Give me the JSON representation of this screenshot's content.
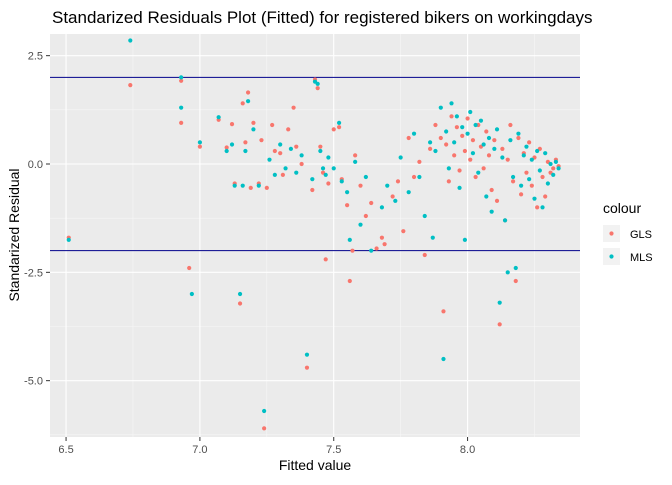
{
  "chart_data": {
    "type": "scatter",
    "title": "Standarized Residuals Plot (Fitted) for registered bikers on workingdays",
    "xlabel": "Fitted value",
    "ylabel": "Standarized Residual",
    "xlim": [
      6.44,
      8.42
    ],
    "ylim": [
      -6.3,
      3.0
    ],
    "x_ticks": [
      6.5,
      7.0,
      7.5,
      8.0
    ],
    "x_tick_labels": [
      "6.5",
      "7.0",
      "7.5",
      "8.0"
    ],
    "y_ticks": [
      2.5,
      0.0,
      -2.5,
      -5.0
    ],
    "y_tick_labels": [
      "2.5",
      "0.0",
      "-2.5",
      "-5.0"
    ],
    "hlines": [
      2.0,
      -2.0
    ],
    "hline_color": "#00008B",
    "grid": true,
    "panel_background": "#EBEBEB",
    "legend": {
      "title": "colour",
      "placement": "right"
    },
    "series": [
      {
        "name": "GLS",
        "color": "#F8766D",
        "points": [
          [
            6.51,
            -1.7
          ],
          [
            6.74,
            1.82
          ],
          [
            6.93,
            0.95
          ],
          [
            6.93,
            1.92
          ],
          [
            6.96,
            -2.4
          ],
          [
            7.0,
            0.4
          ],
          [
            7.07,
            1.02
          ],
          [
            7.1,
            0.38
          ],
          [
            7.12,
            0.92
          ],
          [
            7.13,
            -0.45
          ],
          [
            7.15,
            -3.22
          ],
          [
            7.16,
            1.4
          ],
          [
            7.17,
            0.5
          ],
          [
            7.18,
            1.65
          ],
          [
            7.19,
            -0.55
          ],
          [
            7.2,
            0.95
          ],
          [
            7.22,
            -0.45
          ],
          [
            7.23,
            0.55
          ],
          [
            7.24,
            -6.1
          ],
          [
            7.25,
            -0.55
          ],
          [
            7.27,
            0.9
          ],
          [
            7.28,
            0.3
          ],
          [
            7.3,
            0.25
          ],
          [
            7.31,
            -0.25
          ],
          [
            7.33,
            0.8
          ],
          [
            7.35,
            1.3
          ],
          [
            7.36,
            0.4
          ],
          [
            7.38,
            0.0
          ],
          [
            7.4,
            -4.7
          ],
          [
            7.42,
            -0.6
          ],
          [
            7.43,
            1.95
          ],
          [
            7.44,
            1.75
          ],
          [
            7.45,
            0.4
          ],
          [
            7.46,
            -0.2
          ],
          [
            7.47,
            -2.2
          ],
          [
            7.48,
            -0.45
          ],
          [
            7.5,
            0.8
          ],
          [
            7.52,
            0.85
          ],
          [
            7.53,
            -0.35
          ],
          [
            7.55,
            -0.95
          ],
          [
            7.56,
            -2.7
          ],
          [
            7.57,
            -2.0
          ],
          [
            7.58,
            0.2
          ],
          [
            7.6,
            -0.5
          ],
          [
            7.62,
            -1.2
          ],
          [
            7.64,
            -0.9
          ],
          [
            7.66,
            -1.95
          ],
          [
            7.68,
            -1.7
          ],
          [
            7.69,
            -1.85
          ],
          [
            7.72,
            -0.75
          ],
          [
            7.74,
            -0.4
          ],
          [
            7.76,
            -1.55
          ],
          [
            7.78,
            0.6
          ],
          [
            7.8,
            -0.3
          ],
          [
            7.82,
            0.05
          ],
          [
            7.84,
            -2.1
          ],
          [
            7.86,
            0.35
          ],
          [
            7.88,
            0.9
          ],
          [
            7.9,
            0.6
          ],
          [
            7.91,
            -3.4
          ],
          [
            7.92,
            0.45
          ],
          [
            7.93,
            -0.4
          ],
          [
            7.94,
            1.1
          ],
          [
            7.95,
            0.2
          ],
          [
            7.96,
            0.85
          ],
          [
            7.97,
            -0.15
          ],
          [
            7.98,
            0.65
          ],
          [
            7.99,
            0.3
          ],
          [
            8.0,
            1.05
          ],
          [
            8.01,
            0.1
          ],
          [
            8.02,
            0.55
          ],
          [
            8.03,
            -0.3
          ],
          [
            8.04,
            0.9
          ],
          [
            8.05,
            0.4
          ],
          [
            8.06,
            -0.1
          ],
          [
            8.07,
            0.75
          ],
          [
            8.08,
            0.2
          ],
          [
            8.09,
            -0.6
          ],
          [
            8.1,
            0.55
          ],
          [
            8.11,
            -0.85
          ],
          [
            8.12,
            -3.7
          ],
          [
            8.13,
            0.35
          ],
          [
            8.14,
            -1.3
          ],
          [
            8.15,
            0.1
          ],
          [
            8.16,
            0.9
          ],
          [
            8.17,
            -0.4
          ],
          [
            8.18,
            -2.7
          ],
          [
            8.19,
            0.6
          ],
          [
            8.2,
            -0.7
          ],
          [
            8.21,
            0.25
          ],
          [
            8.22,
            -0.2
          ],
          [
            8.23,
            0.5
          ],
          [
            8.24,
            -0.5
          ],
          [
            8.25,
            0.15
          ],
          [
            8.26,
            -1.0
          ],
          [
            8.27,
            0.35
          ],
          [
            8.28,
            -0.3
          ],
          [
            8.29,
            -0.75
          ],
          [
            8.3,
            0.05
          ],
          [
            8.31,
            -0.2
          ],
          [
            8.32,
            -0.1
          ],
          [
            8.33,
            0.1
          ],
          [
            8.34,
            -0.05
          ]
        ]
      },
      {
        "name": "MLS",
        "color": "#00BFC4",
        "points": [
          [
            6.51,
            -1.75
          ],
          [
            6.74,
            2.85
          ],
          [
            6.93,
            1.3
          ],
          [
            6.93,
            2.0
          ],
          [
            6.97,
            -3.0
          ],
          [
            7.0,
            0.5
          ],
          [
            7.07,
            1.08
          ],
          [
            7.1,
            0.3
          ],
          [
            7.12,
            0.45
          ],
          [
            7.13,
            -0.5
          ],
          [
            7.15,
            -3.0
          ],
          [
            7.16,
            -0.5
          ],
          [
            7.17,
            0.3
          ],
          [
            7.18,
            1.45
          ],
          [
            7.2,
            0.8
          ],
          [
            7.22,
            -0.5
          ],
          [
            7.24,
            -5.7
          ],
          [
            7.26,
            0.1
          ],
          [
            7.28,
            -0.25
          ],
          [
            7.3,
            0.45
          ],
          [
            7.32,
            -0.1
          ],
          [
            7.34,
            0.35
          ],
          [
            7.36,
            -0.2
          ],
          [
            7.38,
            0.2
          ],
          [
            7.4,
            -4.4
          ],
          [
            7.42,
            -0.35
          ],
          [
            7.43,
            1.9
          ],
          [
            7.44,
            1.85
          ],
          [
            7.45,
            0.3
          ],
          [
            7.46,
            -0.1
          ],
          [
            7.47,
            -0.25
          ],
          [
            7.48,
            0.15
          ],
          [
            7.5,
            -0.1
          ],
          [
            7.52,
            0.95
          ],
          [
            7.53,
            -0.4
          ],
          [
            7.55,
            -0.65
          ],
          [
            7.56,
            -1.75
          ],
          [
            7.58,
            0.05
          ],
          [
            7.6,
            -1.4
          ],
          [
            7.62,
            -0.3
          ],
          [
            7.64,
            -2.0
          ],
          [
            7.68,
            -1.0
          ],
          [
            7.7,
            -0.5
          ],
          [
            7.73,
            -0.85
          ],
          [
            7.75,
            0.15
          ],
          [
            7.78,
            -0.65
          ],
          [
            7.8,
            0.7
          ],
          [
            7.82,
            -0.3
          ],
          [
            7.84,
            -1.2
          ],
          [
            7.86,
            0.5
          ],
          [
            7.87,
            -1.7
          ],
          [
            7.88,
            0.3
          ],
          [
            7.9,
            1.3
          ],
          [
            7.91,
            -4.5
          ],
          [
            7.92,
            0.75
          ],
          [
            7.93,
            -0.1
          ],
          [
            7.94,
            1.4
          ],
          [
            7.95,
            0.5
          ],
          [
            7.96,
            1.1
          ],
          [
            7.97,
            -0.55
          ],
          [
            7.98,
            0.85
          ],
          [
            7.99,
            -1.75
          ],
          [
            8.0,
            0.7
          ],
          [
            8.01,
            1.2
          ],
          [
            8.02,
            0.25
          ],
          [
            8.03,
            0.9
          ],
          [
            8.04,
            -0.2
          ],
          [
            8.05,
            1.0
          ],
          [
            8.06,
            0.45
          ],
          [
            8.07,
            -0.75
          ],
          [
            8.08,
            0.6
          ],
          [
            8.09,
            -1.1
          ],
          [
            8.1,
            0.35
          ],
          [
            8.11,
            0.8
          ],
          [
            8.12,
            -3.2
          ],
          [
            8.13,
            0.15
          ],
          [
            8.14,
            -1.3
          ],
          [
            8.15,
            -2.5
          ],
          [
            8.16,
            0.55
          ],
          [
            8.17,
            -0.3
          ],
          [
            8.18,
            -2.4
          ],
          [
            8.19,
            0.7
          ],
          [
            8.2,
            -0.5
          ],
          [
            8.21,
            0.2
          ],
          [
            8.22,
            0.4
          ],
          [
            8.23,
            -0.35
          ],
          [
            8.24,
            0.1
          ],
          [
            8.25,
            -0.8
          ],
          [
            8.26,
            0.3
          ],
          [
            8.27,
            -0.15
          ],
          [
            8.28,
            -1.0
          ],
          [
            8.29,
            0.25
          ],
          [
            8.3,
            -0.45
          ],
          [
            8.31,
            0.0
          ],
          [
            8.32,
            -0.25
          ],
          [
            8.33,
            0.05
          ],
          [
            8.34,
            -0.1
          ]
        ]
      }
    ]
  }
}
